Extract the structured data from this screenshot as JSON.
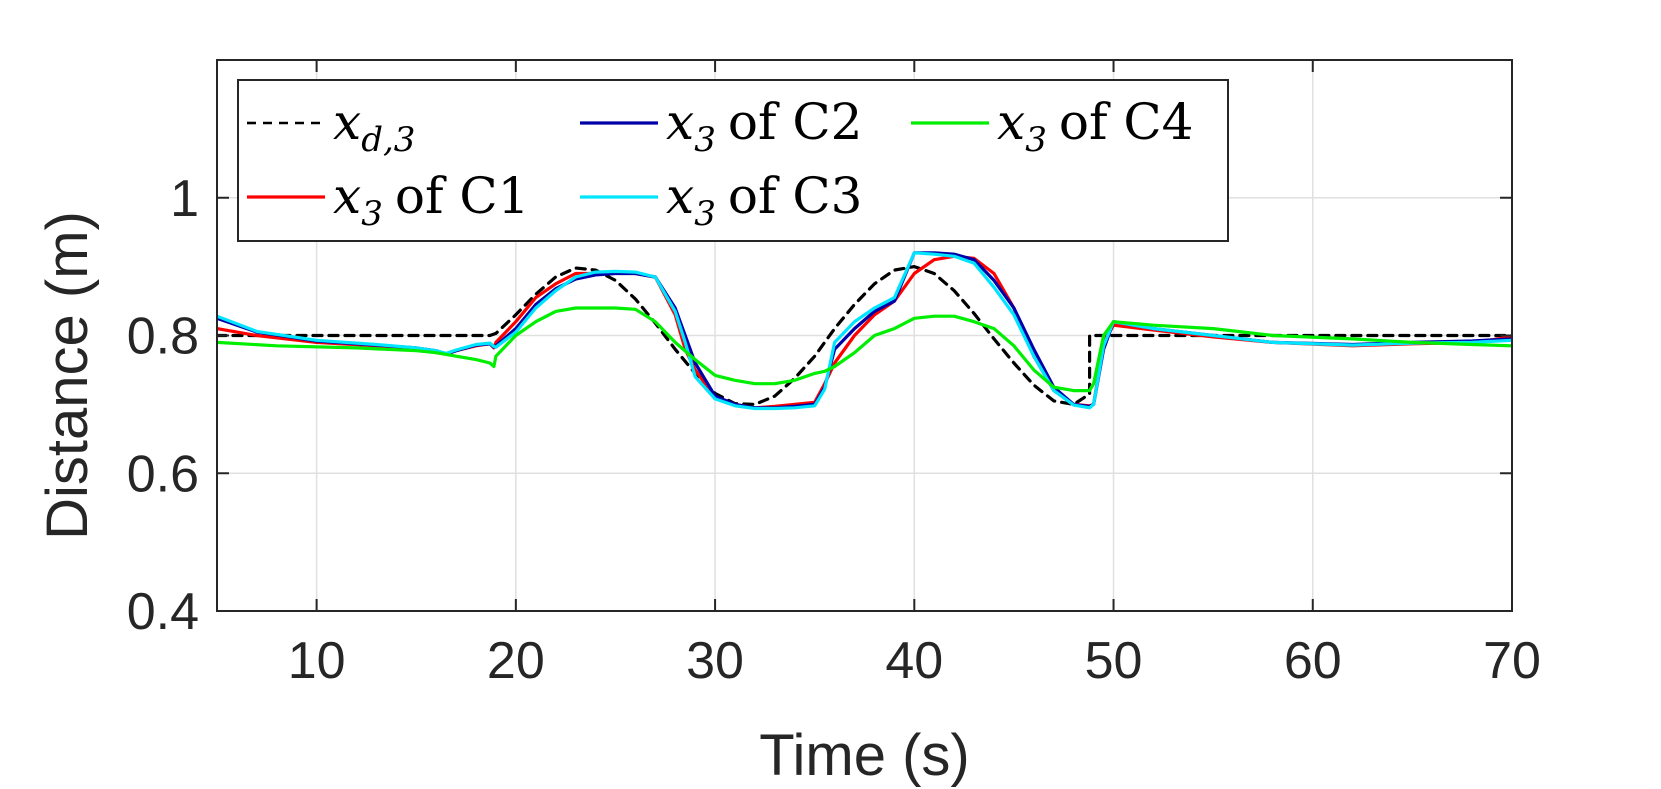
{
  "chart_data": {
    "type": "line",
    "title": "",
    "xlabel": "Time (s)",
    "ylabel": "Distance (m)",
    "xlim": [
      5,
      70
    ],
    "ylim": [
      0.4,
      1.2
    ],
    "xticks": [
      10,
      20,
      30,
      40,
      50,
      60,
      70
    ],
    "xtick_labels": [
      "10",
      "20",
      "30",
      "40",
      "50",
      "60",
      "70"
    ],
    "yticks": [
      0.4,
      0.6,
      0.8,
      1.0
    ],
    "ytick_labels": [
      "0.4",
      "0.6",
      "0.8",
      "1"
    ],
    "grid": true,
    "legend_position": "top-left",
    "series": [
      {
        "name": "x_{d,3}",
        "legend_main": "x",
        "legend_sub": "d,3",
        "legend_suffix": "",
        "color": "#000000",
        "dash": "dashed",
        "x": [
          5,
          18.7,
          19,
          20,
          21,
          22,
          23,
          24,
          25,
          26,
          27,
          28,
          29,
          30,
          31,
          32,
          33,
          34,
          35,
          36,
          37,
          38,
          39,
          40,
          41,
          42,
          43,
          44,
          45,
          46,
          47,
          48,
          48.8,
          48.8,
          50,
          70
        ],
        "y": [
          0.8,
          0.8,
          0.803,
          0.83,
          0.86,
          0.885,
          0.898,
          0.895,
          0.88,
          0.853,
          0.818,
          0.78,
          0.745,
          0.716,
          0.701,
          0.7,
          0.712,
          0.738,
          0.77,
          0.81,
          0.845,
          0.875,
          0.895,
          0.9,
          0.89,
          0.865,
          0.832,
          0.795,
          0.76,
          0.728,
          0.705,
          0.7,
          0.715,
          0.8,
          0.8,
          0.8
        ]
      },
      {
        "name": "x_3 of C1",
        "legend_main": "x",
        "legend_sub": "3",
        "legend_suffix": "of C1",
        "color": "#ff0000",
        "dash": "solid",
        "x": [
          5,
          7,
          10,
          13,
          15,
          16,
          16.5,
          17,
          18,
          18.7,
          18.9,
          19,
          20,
          21,
          22,
          23,
          24,
          25,
          26,
          27,
          28,
          28.5,
          29,
          30,
          31,
          32,
          33,
          34,
          35,
          35.5,
          36,
          37,
          38,
          39,
          40,
          41,
          42,
          43,
          44,
          45,
          46,
          47,
          48,
          48.8,
          49,
          49.5,
          50,
          52,
          55,
          58,
          62,
          65,
          68,
          70
        ],
        "y": [
          0.81,
          0.8,
          0.79,
          0.785,
          0.782,
          0.775,
          0.773,
          0.778,
          0.785,
          0.788,
          0.782,
          0.79,
          0.82,
          0.855,
          0.875,
          0.89,
          0.89,
          0.892,
          0.89,
          0.885,
          0.83,
          0.78,
          0.75,
          0.71,
          0.7,
          0.695,
          0.697,
          0.7,
          0.703,
          0.73,
          0.76,
          0.8,
          0.83,
          0.85,
          0.89,
          0.91,
          0.915,
          0.912,
          0.89,
          0.84,
          0.77,
          0.72,
          0.7,
          0.698,
          0.7,
          0.79,
          0.815,
          0.808,
          0.798,
          0.79,
          0.785,
          0.788,
          0.79,
          0.798
        ]
      },
      {
        "name": "x_3 of C2",
        "legend_main": "x",
        "legend_sub": "3",
        "legend_suffix": "of C2",
        "color": "#0000a8",
        "dash": "solid",
        "x": [
          5,
          7,
          10,
          13,
          15,
          16,
          16.5,
          17,
          18,
          18.7,
          18.9,
          19,
          20,
          21,
          22,
          23,
          24,
          25,
          26,
          27,
          28,
          28.5,
          29,
          30,
          31,
          32,
          33,
          34,
          35,
          35.5,
          36,
          37,
          38,
          39,
          40,
          41,
          42,
          43,
          44,
          45,
          46,
          47,
          48,
          48.8,
          49,
          49.5,
          50,
          52,
          55,
          58,
          62,
          65,
          68,
          70
        ],
        "y": [
          0.825,
          0.805,
          0.792,
          0.786,
          0.782,
          0.778,
          0.773,
          0.778,
          0.786,
          0.788,
          0.783,
          0.785,
          0.81,
          0.845,
          0.868,
          0.882,
          0.888,
          0.89,
          0.89,
          0.885,
          0.84,
          0.8,
          0.76,
          0.712,
          0.7,
          0.695,
          0.695,
          0.697,
          0.7,
          0.725,
          0.78,
          0.81,
          0.835,
          0.85,
          0.92,
          0.92,
          0.918,
          0.91,
          0.88,
          0.84,
          0.78,
          0.725,
          0.7,
          0.697,
          0.7,
          0.78,
          0.82,
          0.81,
          0.8,
          0.79,
          0.787,
          0.79,
          0.792,
          0.795
        ]
      },
      {
        "name": "x_3 of C3",
        "legend_main": "x",
        "legend_sub": "3",
        "legend_suffix": "of C3",
        "color": "#00e5ff",
        "dash": "solid",
        "x": [
          5,
          7,
          10,
          13,
          15,
          16,
          16.5,
          17,
          18,
          18.7,
          18.9,
          19,
          20,
          21,
          22,
          23,
          24,
          25,
          26,
          27,
          28,
          28.5,
          29,
          30,
          31,
          32,
          33,
          34,
          35,
          35.5,
          36,
          37,
          38,
          39,
          40,
          41,
          42,
          43,
          44,
          45,
          46,
          47,
          48,
          48.8,
          49,
          49.5,
          50,
          52,
          55,
          58,
          62,
          65,
          68,
          70
        ],
        "y": [
          0.828,
          0.806,
          0.793,
          0.787,
          0.782,
          0.778,
          0.774,
          0.779,
          0.787,
          0.789,
          0.784,
          0.783,
          0.805,
          0.84,
          0.865,
          0.885,
          0.892,
          0.893,
          0.892,
          0.885,
          0.835,
          0.79,
          0.74,
          0.708,
          0.698,
          0.694,
          0.694,
          0.695,
          0.698,
          0.722,
          0.79,
          0.82,
          0.84,
          0.855,
          0.92,
          0.918,
          0.915,
          0.905,
          0.87,
          0.83,
          0.77,
          0.72,
          0.699,
          0.695,
          0.7,
          0.785,
          0.82,
          0.81,
          0.8,
          0.79,
          0.786,
          0.789,
          0.79,
          0.793
        ]
      },
      {
        "name": "x_3 of C4",
        "legend_main": "x",
        "legend_sub": "3",
        "legend_suffix": "of C4",
        "color": "#00ee00",
        "dash": "solid",
        "x": [
          5,
          8,
          12,
          15,
          16,
          17,
          18,
          18.7,
          18.9,
          19,
          20,
          21,
          22,
          23,
          24,
          25,
          26,
          27,
          28,
          29,
          30,
          31,
          32,
          33,
          34,
          35,
          35.5,
          36,
          37,
          38,
          39,
          40,
          41,
          42,
          43,
          44,
          45,
          46,
          47,
          48,
          48.8,
          49,
          49.5,
          50,
          52,
          55,
          58,
          62,
          65,
          68,
          70
        ],
        "y": [
          0.79,
          0.785,
          0.782,
          0.778,
          0.775,
          0.77,
          0.765,
          0.76,
          0.755,
          0.77,
          0.8,
          0.82,
          0.835,
          0.84,
          0.84,
          0.84,
          0.838,
          0.82,
          0.79,
          0.765,
          0.742,
          0.735,
          0.73,
          0.73,
          0.735,
          0.745,
          0.748,
          0.755,
          0.775,
          0.8,
          0.81,
          0.825,
          0.828,
          0.828,
          0.82,
          0.81,
          0.785,
          0.75,
          0.725,
          0.72,
          0.72,
          0.73,
          0.8,
          0.82,
          0.815,
          0.81,
          0.8,
          0.795,
          0.79,
          0.787,
          0.785
        ]
      }
    ]
  }
}
